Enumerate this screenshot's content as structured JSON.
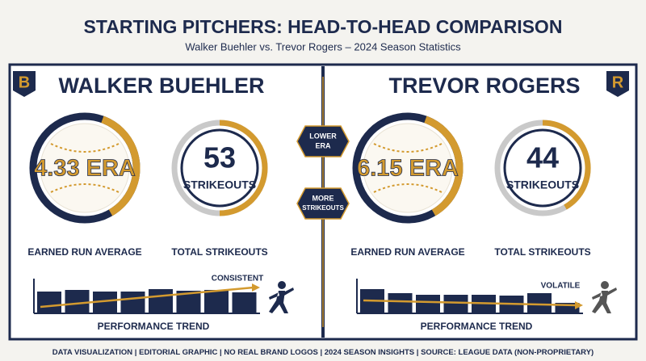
{
  "header": {
    "title": "STARTING PITCHERS: HEAD-TO-HEAD COMPARISON",
    "subtitle": "Walker Buehler vs. Trevor Rogers – 2024 Season Statistics"
  },
  "pitchers": [
    {
      "logo": "B",
      "name": "WALKER BUEHLER",
      "era": "4.33 ERA",
      "era_label": "EARNED RUN AVERAGE",
      "strikeouts": 53,
      "strikeouts_unit": "STRIKEOUTS",
      "strikeouts_label": "TOTAL STRIKEOUTS",
      "trend_note": "CONSISTENT",
      "trend_label": "PERFORMANCE TREND",
      "trend": [
        27,
        29,
        27,
        27,
        30,
        28,
        29,
        26
      ]
    },
    {
      "logo": "R",
      "name": "TREVOR ROGERS",
      "era": "6.15 ERA",
      "era_label": "EARNED RUN AVERAGE",
      "strikeouts": 44,
      "strikeouts_unit": "STRIKEOUTS",
      "strikeouts_label": "TOTAL STRIKEOUTS",
      "trend_note": "VOLATILE",
      "trend_label": "PERFORMANCE TREND",
      "trend": [
        30,
        25,
        23,
        23,
        23,
        22,
        25,
        13
      ]
    }
  ],
  "comparison": [
    {
      "line1": "LOWER",
      "line2": "ERA"
    },
    {
      "line1": "MORE",
      "line2": "STRIKEOUTS"
    }
  ],
  "footer": [
    "DATA VISUALIZATION",
    "EDITORIAL GRAPHIC",
    "NO REAL BRAND LOGOS",
    "2024 SEASON INSIGHTS",
    "SOURCE: LEAGUE DATA (NON-PROPRIETARY)"
  ]
}
